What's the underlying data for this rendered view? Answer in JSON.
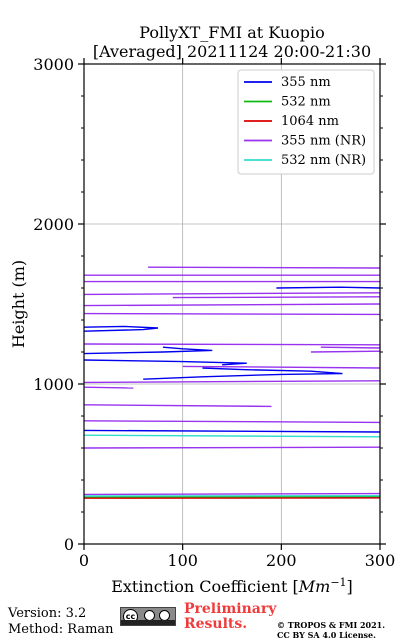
{
  "chart_data": {
    "type": "line",
    "title_line1": "PollyXT_FMI at Kuopio",
    "title_line2": "[Averaged] 20211124 20:00-21:30",
    "xlabel": "Extinction Coefficient [Mm⁻¹]",
    "ylabel": "Height (m)",
    "xlim": [
      0,
      300
    ],
    "ylim": [
      0,
      3000
    ],
    "xticks": [
      "0",
      "100",
      "200",
      "300"
    ],
    "yticks": [
      "0",
      "1000",
      "2000",
      "3000"
    ],
    "xtick_values": [
      0,
      100,
      200,
      300
    ],
    "ytick_values": [
      0,
      1000,
      2000,
      3000
    ],
    "grid": true,
    "legend_position": "top-right",
    "series": [
      {
        "name": "355 nm",
        "color": "#0000ee",
        "segments": [
          [
            [
              0,
              290
            ],
            [
              300,
              292
            ]
          ],
          [
            [
              0,
              710
            ],
            [
              300,
              700
            ]
          ],
          [
            [
              60,
              1030
            ],
            [
              120,
              1045
            ],
            [
              200,
              1060
            ],
            [
              262,
              1065
            ],
            [
              230,
              1080
            ],
            [
              160,
              1090
            ],
            [
              120,
              1100
            ]
          ],
          [
            [
              0,
              1150
            ],
            [
              100,
              1140
            ],
            [
              165,
              1130
            ],
            [
              140,
              1120
            ]
          ],
          [
            [
              0,
              1190
            ],
            [
              80,
              1200
            ],
            [
              130,
              1210
            ],
            [
              100,
              1220
            ],
            [
              80,
              1230
            ]
          ],
          [
            [
              0,
              1330
            ],
            [
              60,
              1340
            ],
            [
              75,
              1350
            ],
            [
              40,
              1360
            ],
            [
              0,
              1355
            ]
          ],
          [
            [
              195,
              1600
            ],
            [
              260,
              1605
            ],
            [
              300,
              1600
            ]
          ]
        ]
      },
      {
        "name": "532 nm",
        "color": "#11bb11",
        "segments": [
          [
            [
              0,
              292
            ],
            [
              300,
              296
            ]
          ]
        ]
      },
      {
        "name": "1064 nm",
        "color": "#dd0000",
        "segments": [
          [
            [
              0,
              286
            ],
            [
              300,
              288
            ]
          ]
        ]
      },
      {
        "name": "355 nm (NR)",
        "color": "#9933ee",
        "segments": [
          [
            [
              0,
              310
            ],
            [
              300,
              315
            ]
          ],
          [
            [
              0,
              600
            ],
            [
              300,
              605
            ]
          ],
          [
            [
              0,
              770
            ],
            [
              300,
              760
            ]
          ],
          [
            [
              0,
              870
            ],
            [
              190,
              860
            ]
          ],
          [
            [
              0,
              980
            ],
            [
              50,
              975
            ]
          ],
          [
            [
              0,
              1010
            ],
            [
              300,
              1020
            ]
          ],
          [
            [
              100,
              1110
            ],
            [
              300,
              1100
            ]
          ],
          [
            [
              0,
              1250
            ],
            [
              300,
              1245
            ]
          ],
          [
            [
              230,
              1200
            ],
            [
              300,
              1205
            ]
          ],
          [
            [
              240,
              1230
            ],
            [
              300,
              1225
            ]
          ],
          [
            [
              0,
              1440
            ],
            [
              300,
              1435
            ]
          ],
          [
            [
              0,
              1490
            ],
            [
              300,
              1500
            ]
          ],
          [
            [
              0,
              1560
            ],
            [
              300,
              1570
            ]
          ],
          [
            [
              90,
              1540
            ],
            [
              300,
              1545
            ]
          ],
          [
            [
              0,
              1640
            ],
            [
              300,
              1640
            ]
          ],
          [
            [
              0,
              1680
            ],
            [
              300,
              1680
            ]
          ],
          [
            [
              65,
              1730
            ],
            [
              300,
              1725
            ]
          ]
        ]
      },
      {
        "name": "532 nm (NR)",
        "color": "#33ddcc",
        "segments": [
          [
            [
              0,
              680
            ],
            [
              300,
              670
            ]
          ],
          [
            [
              0,
              300
            ],
            [
              300,
              302
            ]
          ]
        ]
      }
    ]
  },
  "footer": {
    "version": "Version: 3.2",
    "method": "Method: Raman",
    "prelim_line1": "Preliminary",
    "prelim_line2": "Results.",
    "copyright_line1": "© TROPOS & FMI 2021.",
    "copyright_line2": "CC BY SA 4.0 License.",
    "license_badge_text": "BY SA"
  }
}
